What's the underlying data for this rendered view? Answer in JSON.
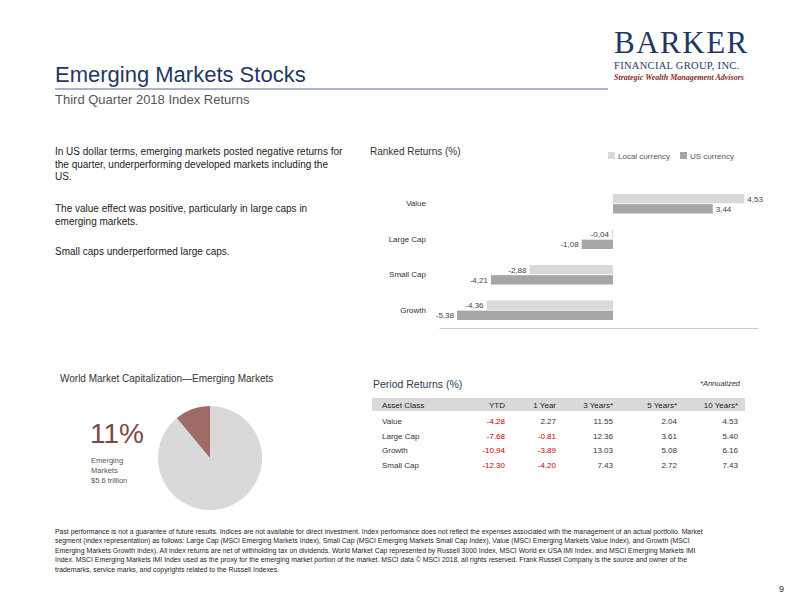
{
  "page": {
    "title": "Emerging Markets Stocks",
    "subtitle": "Third Quarter 2018 Index Returns",
    "logo": [
      "BARKER",
      "FINANCIAL GROUP, INC.",
      "Strategic Wealth Management Advisors"
    ],
    "bullets": [
      "In US dollar terms, emerging markets posted negative returns for the quarter, underperforming developed markets including the US.",
      "The value effect was positive, particularly in large caps in emerging markets.",
      "Small caps underperformed large caps."
    ],
    "footnote": "Past performance is not a guarantee of future results. Indices are not available for direct investment. Index performance does not reflect the expenses associated with the management of an actual portfolio. Market segment (index representation) as follows: Large Cap (MSCI Emerging Markets Index), Small Cap (MSCI Emerging Markets Small Cap Index), Value (MSCI Emerging Markets Value Index), and Growth (MSCI Emerging Markets Growth Index). All index returns are net of withholding tax on dividends. World Market Cap represented by Russell 3000 Index, MSCI World ex USA IMI Index, and MSCI Emerging Markets IMI Index. MSCI Emerging Markets IMI Index used as the proxy for the emerging market portion of the market. MSCI data © MSCI 2018, all rights reserved. Frank Russell Company is the source and owner of the trademarks, service marks, and copyrights related to the Russell Indexes.",
    "page_number": "9"
  },
  "chart_data": [
    {
      "type": "bar",
      "title": "Ranked Returns (%)",
      "orientation": "horizontal",
      "categories": [
        "Value",
        "Large Cap",
        "Small Cap",
        "Growth"
      ],
      "series": [
        {
          "name": "Local currency",
          "color": "#d9d9d9",
          "values": [
            4.53,
            -0.04,
            -2.88,
            -4.36
          ],
          "value_labels": [
            "4,53",
            "-0,04",
            "-2,88",
            "-4,36"
          ]
        },
        {
          "name": "US currency",
          "color": "#a6a6a6",
          "values": [
            3.44,
            -1.08,
            -4.21,
            -5.38
          ],
          "value_labels": [
            "3,44",
            "-1,08",
            "-4,21",
            "-5,38"
          ]
        }
      ],
      "xlim": [
        -6,
        5
      ],
      "data_labels": true,
      "legend": "top-right",
      "tick_labels": "y",
      "grid": false
    },
    {
      "type": "pie",
      "title": "World Market Capitalization—Emerging Markets",
      "categories": [
        null,
        "Emerging Markets"
      ],
      "values": [
        89,
        11
      ],
      "value_labels": [
        null,
        "11%"
      ],
      "colors": [
        "#d9d9d9",
        "#a06a66"
      ],
      "annotations": [
        "$5.6 trillion"
      ],
      "data_labels": true
    }
  ],
  "table": {
    "title": "Period Returns (%)",
    "note": "*Annualized",
    "columns": [
      "Asset Class",
      "YTD",
      "1 Year",
      "3 Years*",
      "5 Years*",
      "10 Years*"
    ],
    "rows": [
      [
        "Value",
        "-4.28",
        "2.27",
        "11.55",
        "2.04",
        "4.53"
      ],
      [
        "Large Cap",
        "-7.68",
        "-0.81",
        "12.36",
        "3.61",
        "5.40"
      ],
      [
        "Growth",
        "-10.94",
        "-3.89",
        "13.03",
        "5.08",
        "6.16"
      ],
      [
        "Small Cap",
        "-12.30",
        "-4.20",
        "7.43",
        "2.72",
        "7.43"
      ]
    ]
  }
}
